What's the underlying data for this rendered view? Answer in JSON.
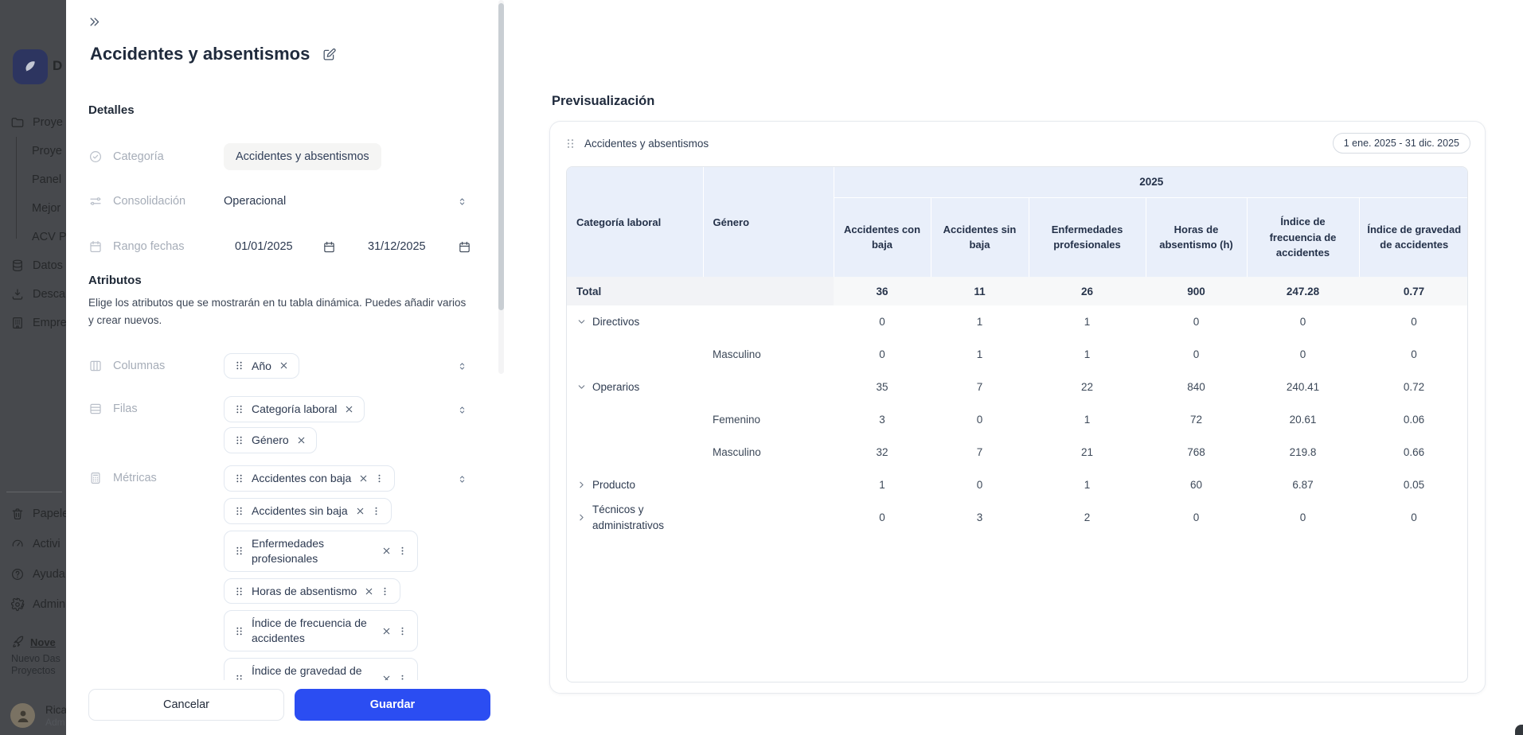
{
  "colors": {
    "accent_blue": "#2b4df2",
    "table_header_blue": "#e9effa",
    "sidebar_dim_bg": "#47494d",
    "logo_navy": "#2d3560"
  },
  "sidebar": {
    "brand_initial": "D",
    "nav_items": [
      {
        "icon": "folder-icon",
        "label": "Proye",
        "indent": false
      },
      {
        "icon": null,
        "label": "Proye",
        "indent": true
      },
      {
        "icon": null,
        "label": "Panel",
        "indent": true
      },
      {
        "icon": null,
        "label": "Mejor",
        "indent": true
      },
      {
        "icon": null,
        "label": "ACV P",
        "indent": true
      },
      {
        "icon": "database-icon",
        "label": "Datos",
        "indent": false
      },
      {
        "icon": "download-icon",
        "label": "Desca",
        "indent": false
      },
      {
        "icon": "building-icon",
        "label": "Empre",
        "indent": false
      }
    ],
    "footer_items": [
      {
        "icon": "trash-icon",
        "label": "Papele"
      },
      {
        "icon": "activity-icon",
        "label": "Activi"
      },
      {
        "icon": "help-icon",
        "label": "Ayuda"
      },
      {
        "icon": "gear-icon",
        "label": "Admin"
      }
    ],
    "news": {
      "icon": "rocket-icon",
      "title": "Nove",
      "line1": "Nuevo Das",
      "line2": "Proyectos"
    },
    "user": {
      "name": "Rica",
      "role": "Adm"
    }
  },
  "drawer": {
    "title": "Accidentes y absentismos",
    "details": {
      "heading": "Detalles",
      "categoria": {
        "label": "Categoría",
        "value": "Accidentes y absentismos",
        "icon": "check-circle-icon"
      },
      "consolidacion": {
        "label": "Consolidación",
        "value": "Operacional",
        "icon": "sliders-icon"
      },
      "rango": {
        "label": "Rango fechas",
        "start": "01/01/2025",
        "end": "31/12/2025",
        "icon": "calendar-icon"
      }
    },
    "atributos": {
      "heading": "Atributos",
      "description": "Elige los atributos que se mostrarán en tu tabla dinámica. Puedes añadir varios y crear nuevos.",
      "columnas": {
        "label": "Columnas",
        "icon": "columns-icon",
        "chips": [
          "Año"
        ]
      },
      "filas": {
        "label": "Filas",
        "icon": "rows-icon",
        "chips": [
          "Categoría laboral",
          "Género"
        ]
      },
      "metricas": {
        "label": "Métricas",
        "icon": "calculator-icon",
        "chips": [
          "Accidentes con baja",
          "Accidentes sin baja",
          "Enfermedades profesionales",
          "Horas de absentismo",
          "Índice de frecuencia de accidentes",
          "Índice de gravedad de accidentes"
        ]
      }
    },
    "footer": {
      "cancel_label": "Cancelar",
      "save_label": "Guardar"
    }
  },
  "preview": {
    "heading": "Previsualización",
    "card_title": "Accidentes y absentismos",
    "date_badge": "1 ene. 2025 - 31 dic. 2025",
    "table": {
      "col_group_header": "2025",
      "row_headers": [
        "Categoría laboral",
        "Género"
      ],
      "columns": [
        "Accidentes con baja",
        "Accidentes sin baja",
        "Enfermedades profesionales",
        "Horas de absentismo (h)",
        "Índice de frecuencia de accidentes",
        "Índice de gravedad de accidentes"
      ],
      "rows": [
        {
          "label": "Total",
          "type": "total",
          "values": [
            "36",
            "11",
            "26",
            "900",
            "247.28",
            "0.77"
          ]
        },
        {
          "label": "Directivos",
          "type": "category",
          "expanded": true,
          "values": [
            "0",
            "1",
            "1",
            "0",
            "0",
            "0"
          ]
        },
        {
          "label": "Masculino",
          "type": "gender",
          "values": [
            "0",
            "1",
            "1",
            "0",
            "0",
            "0"
          ]
        },
        {
          "label": "Operarios",
          "type": "category",
          "expanded": true,
          "values": [
            "35",
            "7",
            "22",
            "840",
            "240.41",
            "0.72"
          ]
        },
        {
          "label": "Femenino",
          "type": "gender",
          "values": [
            "3",
            "0",
            "1",
            "72",
            "20.61",
            "0.06"
          ]
        },
        {
          "label": "Masculino",
          "type": "gender",
          "values": [
            "32",
            "7",
            "21",
            "768",
            "219.8",
            "0.66"
          ]
        },
        {
          "label": "Producto",
          "type": "category",
          "expanded": false,
          "values": [
            "1",
            "0",
            "1",
            "60",
            "6.87",
            "0.05"
          ]
        },
        {
          "label": "Técnicos y administrativos",
          "type": "category",
          "expanded": false,
          "values": [
            "0",
            "3",
            "2",
            "0",
            "0",
            "0"
          ]
        }
      ]
    }
  }
}
